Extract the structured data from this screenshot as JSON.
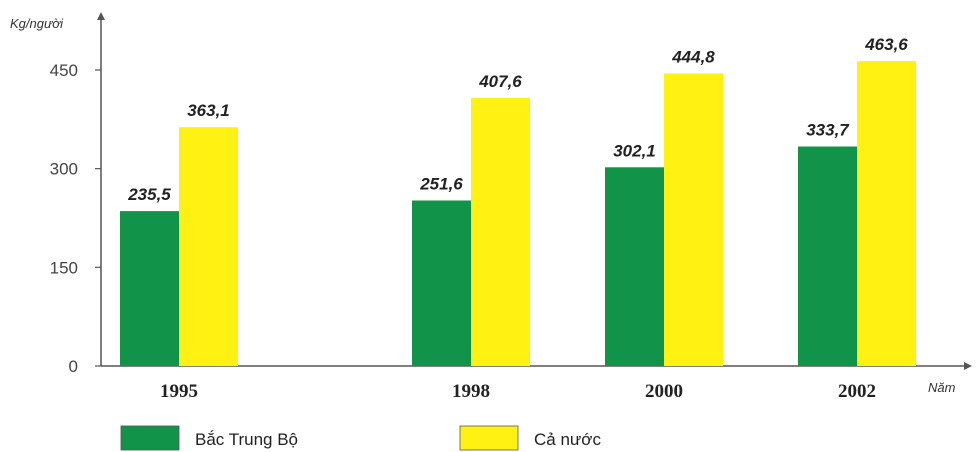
{
  "chart_data": {
    "type": "bar",
    "ylabel": "Kg/người",
    "xlabel": "Năm",
    "categories": [
      "1995",
      "1998",
      "2000",
      "2002"
    ],
    "series": [
      {
        "name": "Bắc Trung Bộ",
        "values": [
          235.5,
          251.6,
          302.1,
          333.7
        ],
        "labels": [
          "235,5",
          "251,6",
          "302,1",
          "333,7"
        ],
        "color": "#11934a"
      },
      {
        "name": "Cả nước",
        "values": [
          363.1,
          407.6,
          444.8,
          463.6
        ],
        "labels": [
          "363,1",
          "407,6",
          "444,8",
          "463,6"
        ],
        "color": "#fff212"
      }
    ],
    "yticks": [
      0,
      150,
      300,
      450
    ],
    "ylim": [
      0,
      450
    ],
    "grid": false,
    "legend": "bottom-left"
  }
}
